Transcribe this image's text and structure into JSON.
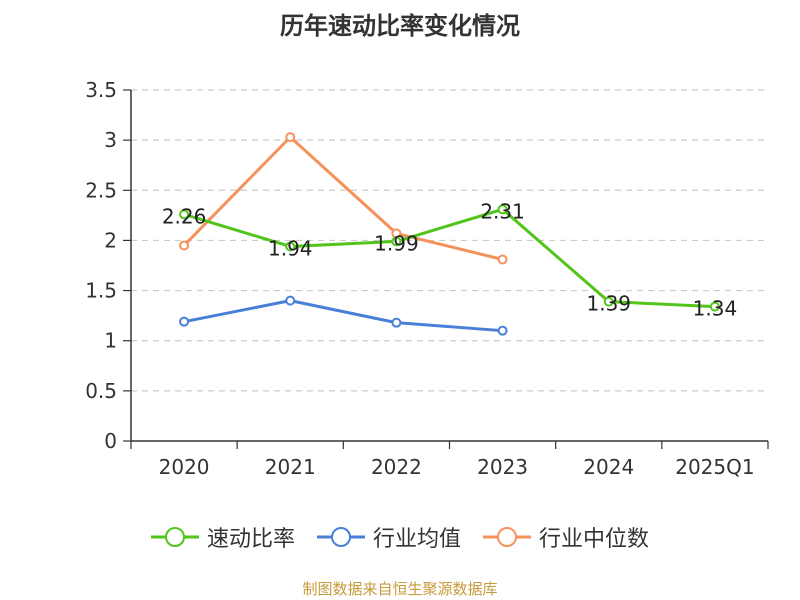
{
  "chart_data": {
    "type": "line",
    "title": "历年速动比率变化情况",
    "categories": [
      "2020",
      "2021",
      "2022",
      "2023",
      "2024",
      "2025Q1"
    ],
    "ylim": [
      0,
      3.5
    ],
    "yticks": [
      "0",
      "0.5",
      "1",
      "1.5",
      "2",
      "2.5",
      "3",
      "3.5"
    ],
    "grid": true,
    "legend_position": "bottom",
    "series": [
      {
        "name": "速动比率",
        "color": "#52c41a",
        "values": [
          2.26,
          1.94,
          1.99,
          2.31,
          1.39,
          1.34
        ],
        "labels": [
          "2.26",
          "1.94",
          "1.99",
          "2.31",
          "1.39",
          "1.34"
        ]
      },
      {
        "name": "行业均值",
        "color": "#4a7fd8",
        "values": [
          1.19,
          1.4,
          1.18,
          1.1,
          null,
          null
        ]
      },
      {
        "name": "行业中位数",
        "color": "#f5925a",
        "values": [
          1.95,
          3.03,
          2.07,
          1.81,
          null,
          null
        ]
      }
    ]
  },
  "source": "制图数据来自恒生聚源数据库"
}
